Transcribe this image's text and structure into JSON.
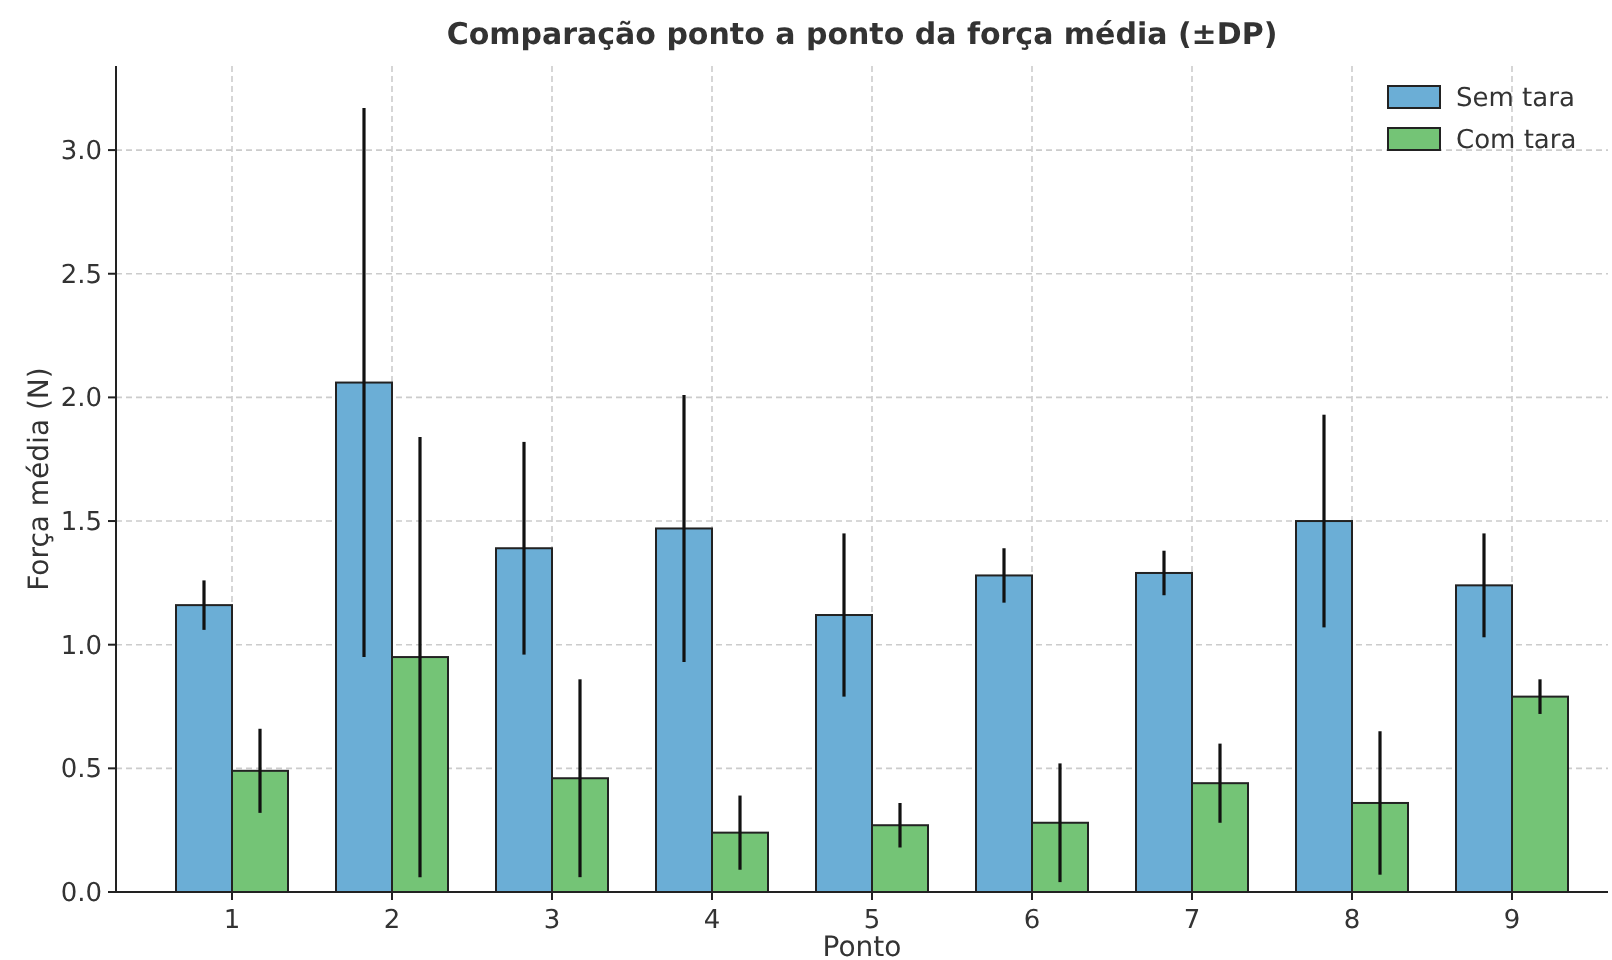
{
  "chart_data": {
    "type": "bar",
    "title": "Comparação ponto a ponto da força média (±DP)",
    "xlabel": "Ponto",
    "ylabel": "Força média (N)",
    "categories": [
      "1",
      "2",
      "3",
      "4",
      "5",
      "6",
      "7",
      "8",
      "9"
    ],
    "series": [
      {
        "name": "Sem tara",
        "color": "#6baed6",
        "values": [
          1.16,
          2.06,
          1.39,
          1.47,
          1.12,
          1.28,
          1.29,
          1.5,
          1.24
        ],
        "errors": [
          0.1,
          1.11,
          0.43,
          0.54,
          0.33,
          0.11,
          0.09,
          0.43,
          0.21
        ]
      },
      {
        "name": "Com tara",
        "color": "#74c476",
        "values": [
          0.49,
          0.95,
          0.46,
          0.24,
          0.27,
          0.28,
          0.44,
          0.36,
          0.79
        ],
        "errors": [
          0.17,
          0.89,
          0.4,
          0.15,
          0.09,
          0.24,
          0.16,
          0.29,
          0.07
        ]
      }
    ],
    "ylim": [
      0,
      3.34
    ],
    "yticks": [
      {
        "value": 0,
        "label": "0.0"
      },
      {
        "value": 0.5,
        "label": "0.5"
      },
      {
        "value": 1,
        "label": "1.0"
      },
      {
        "value": 1.5,
        "label": "1.5"
      },
      {
        "value": 2,
        "label": "2.0"
      },
      {
        "value": 2.5,
        "label": "2.5"
      },
      {
        "value": 3,
        "label": "3.0"
      }
    ],
    "grid": true,
    "legend": "top right"
  }
}
